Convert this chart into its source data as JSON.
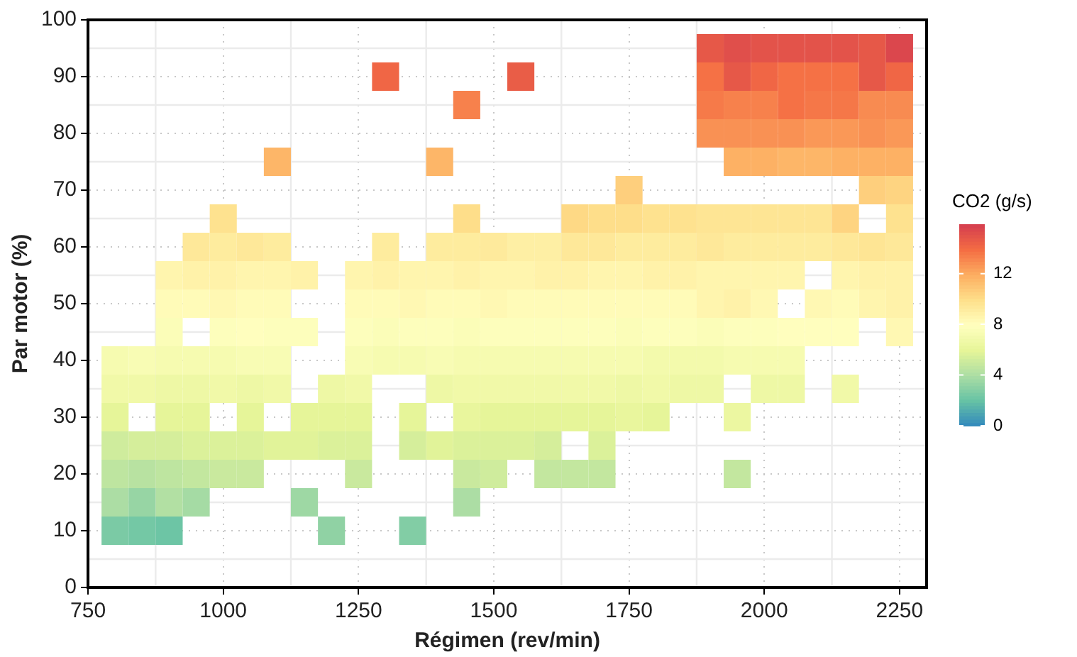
{
  "chart_data": {
    "type": "heatmap",
    "xlabel": "Régimen (rev/min)",
    "ylabel": "Par motor (%)",
    "clabel": "CO2 (g/s)",
    "x": [
      800,
      850,
      900,
      950,
      1000,
      1050,
      1100,
      1150,
      1200,
      1250,
      1300,
      1350,
      1400,
      1450,
      1500,
      1550,
      1600,
      1650,
      1700,
      1750,
      1800,
      1850,
      1900,
      1950,
      2000,
      2050,
      2100,
      2150,
      2200,
      2250
    ],
    "y": [
      95,
      90,
      85,
      80,
      75,
      70,
      65,
      60,
      55,
      50,
      45,
      40,
      35,
      30,
      25,
      20,
      15,
      10
    ],
    "xlim": [
      750,
      2300
    ],
    "xticks": [
      750,
      1000,
      1250,
      1500,
      1750,
      2000,
      2250
    ],
    "ylim": [
      0,
      100
    ],
    "yticks": [
      0,
      10,
      20,
      30,
      40,
      50,
      60,
      70,
      80,
      90,
      100
    ],
    "clim": [
      0,
      15.9
    ],
    "cticks": [
      0,
      4,
      8,
      12
    ],
    "grid": true,
    "cells": [
      [
        null,
        null,
        null,
        null,
        null,
        null,
        null,
        null,
        null,
        null,
        null,
        null,
        null,
        null,
        null,
        null,
        null,
        null,
        null,
        null,
        null,
        null,
        14.8,
        15.2,
        15,
        15,
        15,
        15,
        14.8,
        15.5
      ],
      [
        null,
        null,
        null,
        null,
        null,
        null,
        null,
        null,
        null,
        null,
        14.2,
        null,
        null,
        null,
        null,
        14.6,
        null,
        null,
        null,
        null,
        null,
        null,
        13.8,
        14.8,
        14.2,
        13.8,
        13.8,
        13.8,
        14.8,
        14.2
      ],
      [
        null,
        null,
        null,
        null,
        null,
        null,
        null,
        null,
        null,
        null,
        null,
        null,
        null,
        13.3,
        null,
        null,
        null,
        null,
        null,
        null,
        null,
        null,
        13.5,
        13.3,
        13.3,
        13.8,
        13.6,
        13.6,
        13,
        13
      ],
      [
        null,
        null,
        null,
        null,
        null,
        null,
        null,
        null,
        null,
        null,
        null,
        null,
        null,
        null,
        null,
        null,
        null,
        null,
        null,
        null,
        null,
        null,
        12.8,
        12.8,
        12.8,
        12.8,
        12.6,
        12.6,
        12.8,
        12.6
      ],
      [
        null,
        null,
        null,
        null,
        null,
        null,
        11.6,
        null,
        null,
        null,
        null,
        null,
        11.6,
        null,
        null,
        null,
        null,
        null,
        null,
        null,
        null,
        null,
        null,
        11.8,
        11.8,
        11.6,
        11.6,
        11.8,
        11.8,
        11.8
      ],
      [
        null,
        null,
        null,
        null,
        null,
        null,
        null,
        null,
        null,
        null,
        null,
        null,
        null,
        null,
        null,
        null,
        null,
        null,
        null,
        10.6,
        null,
        null,
        null,
        null,
        null,
        null,
        null,
        null,
        10.6,
        10.4
      ],
      [
        null,
        null,
        null,
        null,
        9.8,
        null,
        null,
        null,
        null,
        null,
        null,
        null,
        null,
        10,
        null,
        null,
        null,
        10.2,
        10,
        10,
        9.8,
        9.8,
        9.6,
        9.6,
        9.6,
        9.6,
        9.6,
        10.4,
        null,
        9.8
      ],
      [
        null,
        null,
        null,
        9.4,
        9.2,
        9.4,
        9.2,
        null,
        null,
        null,
        9.2,
        null,
        9.2,
        9.2,
        9.3,
        9,
        9,
        9.4,
        9.4,
        9.2,
        9.2,
        9.2,
        9.4,
        9.2,
        9.2,
        9.2,
        9.2,
        9.4,
        9.6,
        9.4
      ],
      [
        null,
        null,
        8.6,
        8.8,
        8.8,
        8.6,
        8.6,
        8.8,
        null,
        8.6,
        8.8,
        8.6,
        8.6,
        8.8,
        8.6,
        8.6,
        8.8,
        8.8,
        8.6,
        8.6,
        8.8,
        8.8,
        8.6,
        8.6,
        8.6,
        8.6,
        null,
        8.6,
        8.8,
        8.8
      ],
      [
        null,
        null,
        8.2,
        8.2,
        8.4,
        8.2,
        8.2,
        null,
        null,
        8.2,
        8.2,
        8.4,
        8.2,
        8.2,
        8.4,
        8.2,
        8.2,
        8.2,
        8.2,
        8.2,
        8.2,
        8.2,
        8.6,
        8.8,
        8.4,
        null,
        8.4,
        8.2,
        8.6,
        8.8
      ],
      [
        null,
        null,
        7.6,
        null,
        7.8,
        8,
        7.8,
        7.8,
        null,
        7.8,
        7.6,
        7.8,
        7.8,
        7.6,
        7.8,
        7.8,
        7.8,
        7.8,
        7.8,
        7.6,
        7.8,
        7.8,
        7.6,
        7.8,
        7.8,
        8,
        8,
        8,
        null,
        8.4
      ],
      [
        7.2,
        7.4,
        7.2,
        7.2,
        7.2,
        7.4,
        7.4,
        null,
        null,
        7.4,
        7.2,
        7.2,
        7.4,
        7.2,
        7.2,
        7.2,
        7.2,
        7.2,
        7.2,
        7.2,
        7,
        7,
        7,
        7.2,
        7.2,
        7.2,
        null,
        null,
        null,
        null
      ],
      [
        6.8,
        6.8,
        6.6,
        6.6,
        6.8,
        6.6,
        6.8,
        null,
        6.6,
        6.8,
        null,
        null,
        6.6,
        6.8,
        6.8,
        6.8,
        6.8,
        6.8,
        6.8,
        6.6,
        6.8,
        6.6,
        6.6,
        null,
        6.6,
        6.6,
        null,
        6.8,
        null,
        null
      ],
      [
        6,
        null,
        6,
        6,
        null,
        6,
        null,
        6,
        6,
        6,
        null,
        6,
        null,
        6.2,
        6,
        6,
        6,
        6,
        6,
        6.2,
        6,
        null,
        null,
        6.4,
        null,
        null,
        null,
        null,
        null,
        null
      ],
      [
        5.2,
        5.4,
        5.4,
        5.6,
        5.6,
        5.6,
        5.8,
        5.8,
        5.6,
        5.6,
        null,
        5.4,
        5.8,
        5.6,
        5.6,
        5.6,
        5.4,
        null,
        5.6,
        null,
        null,
        null,
        null,
        null,
        null,
        null,
        null,
        null,
        null,
        null
      ],
      [
        4.6,
        4.4,
        4.6,
        4.8,
        5,
        5,
        null,
        null,
        null,
        5,
        null,
        null,
        null,
        5,
        5.2,
        null,
        4.8,
        4.8,
        4.8,
        null,
        null,
        null,
        null,
        4.8,
        null,
        null,
        null,
        null,
        null,
        null
      ],
      [
        4,
        3.4,
        4.2,
        3.8,
        null,
        null,
        null,
        3.6,
        null,
        null,
        null,
        null,
        null,
        4,
        null,
        null,
        null,
        null,
        null,
        null,
        null,
        null,
        null,
        null,
        null,
        null,
        null,
        null,
        null,
        null
      ],
      [
        2.6,
        2.4,
        2.2,
        null,
        null,
        null,
        null,
        null,
        3.2,
        null,
        null,
        2.8,
        null,
        null,
        null,
        null,
        null,
        null,
        null,
        null,
        null,
        null,
        null,
        null,
        null,
        null,
        null,
        null,
        null,
        null
      ]
    ]
  }
}
